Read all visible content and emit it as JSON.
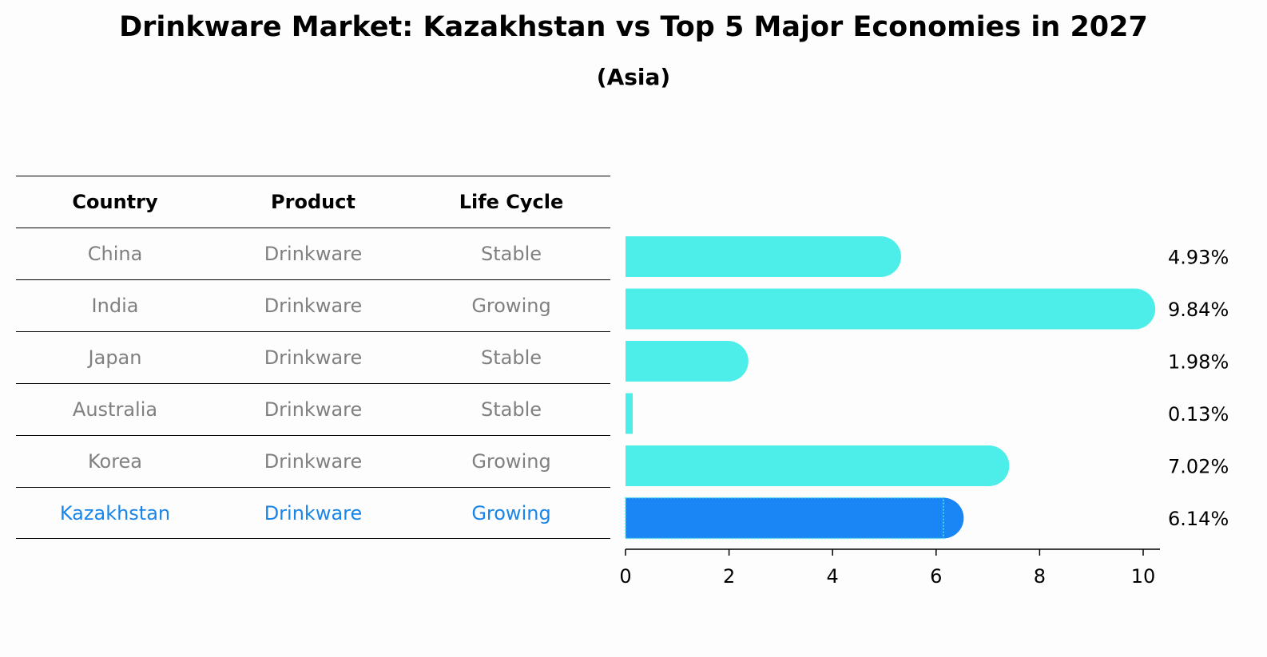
{
  "title": "Drinkware Market: Kazakhstan vs Top 5 Major Economies in 2027",
  "subtitle": "(Asia)",
  "table": {
    "headers": [
      "Country",
      "Product",
      "Life Cycle"
    ],
    "rows": [
      [
        "China",
        "Drinkware",
        "Stable"
      ],
      [
        "India",
        "Drinkware",
        "Growing"
      ],
      [
        "Japan",
        "Drinkware",
        "Stable"
      ],
      [
        "Australia",
        "Drinkware",
        "Stable"
      ],
      [
        "Korea",
        "Drinkware",
        "Growing"
      ],
      [
        "Kazakhstan",
        "Drinkware",
        "Growing"
      ]
    ]
  },
  "chart_data": {
    "type": "bar",
    "orientation": "horizontal",
    "categories": [
      "China",
      "India",
      "Japan",
      "Australia",
      "Korea",
      "Kazakhstan"
    ],
    "values": [
      4.93,
      9.84,
      1.98,
      0.13,
      7.02,
      6.14
    ],
    "value_labels": [
      "4.93%",
      "9.84%",
      "1.98%",
      "0.13%",
      "7.02%",
      "6.14%"
    ],
    "xlim": [
      0,
      10.3
    ],
    "xticks": [
      "0",
      "2",
      "4",
      "6",
      "8",
      "10"
    ],
    "highlight": "Kazakhstan",
    "colors": {
      "default": "#4deeea",
      "highlight": "#1a85f5"
    }
  }
}
